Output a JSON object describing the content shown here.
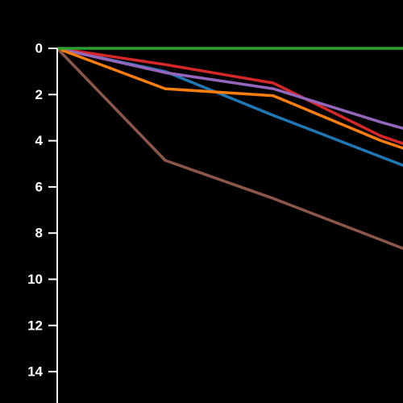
{
  "chart_data": {
    "type": "line",
    "background": "#000000",
    "axis_color": "#ffffff",
    "x": [
      0,
      1,
      2,
      3,
      4
    ],
    "xlim": [
      0,
      3.2
    ],
    "ylim": [
      0,
      15.5
    ],
    "y_inverted": true,
    "grid": false,
    "y_ticks": [
      0,
      2,
      4,
      6,
      8,
      10,
      12,
      14
    ],
    "series": [
      {
        "color": "#2ca02c",
        "values": [
          0,
          0,
          0,
          0,
          0
        ]
      },
      {
        "color": "#1f77b4",
        "values": [
          0,
          1.0,
          2.9,
          4.7,
          6.5
        ]
      },
      {
        "color": "#d62728",
        "values": [
          0,
          0.7,
          1.5,
          3.8,
          5.4
        ]
      },
      {
        "color": "#9467bd",
        "values": [
          0,
          1.05,
          1.75,
          3.2,
          4.5
        ]
      },
      {
        "color": "#ff7f0e",
        "values": [
          0,
          1.75,
          2.05,
          4.0,
          5.6
        ]
      },
      {
        "color": "#8c564b",
        "values": [
          0,
          4.85,
          6.5,
          8.3,
          10.1
        ]
      }
    ]
  }
}
